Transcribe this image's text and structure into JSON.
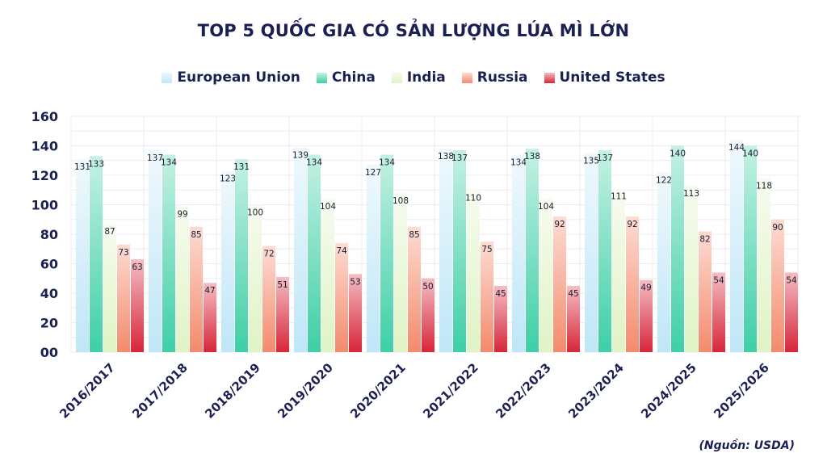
{
  "chart_data": {
    "type": "bar",
    "title": "TOP 5 QUỐC GIA CÓ SẢN LƯỢNG LÚA MÌ LỚN",
    "categories": [
      "2016/2017",
      "2017/2018",
      "2018/2019",
      "2019/2020",
      "2020/2021",
      "2021/2022",
      "2022/2023",
      "2023/2024",
      "2024/2025",
      "2025/2026"
    ],
    "series": [
      {
        "name": "European Union",
        "color": "#bfe6f7",
        "values": [
          131,
          137,
          123,
          139,
          127,
          138,
          134,
          135,
          122,
          144
        ]
      },
      {
        "name": "China",
        "color": "#3dcfa6",
        "values": [
          133,
          134,
          131,
          134,
          134,
          137,
          138,
          137,
          140,
          140
        ]
      },
      {
        "name": "India",
        "color": "#dff3c4",
        "values": [
          87,
          99,
          100,
          104,
          108,
          110,
          104,
          111,
          113,
          118
        ]
      },
      {
        "name": "Russia",
        "color": "#f48a6c",
        "values": [
          73,
          85,
          72,
          74,
          85,
          75,
          92,
          92,
          82,
          90
        ]
      },
      {
        "name": "United States",
        "color": "#d72639",
        "values": [
          63,
          47,
          51,
          53,
          50,
          45,
          45,
          49,
          54,
          54
        ]
      }
    ],
    "yticks": [
      "00",
      "20",
      "40",
      "60",
      "80",
      "100",
      "120",
      "140",
      "160"
    ],
    "ylim": [
      0,
      160
    ],
    "grid": true,
    "legend_position": "top-center",
    "xlabel": "",
    "ylabel": "",
    "source_note": "(Nguồn: USDA)"
  }
}
